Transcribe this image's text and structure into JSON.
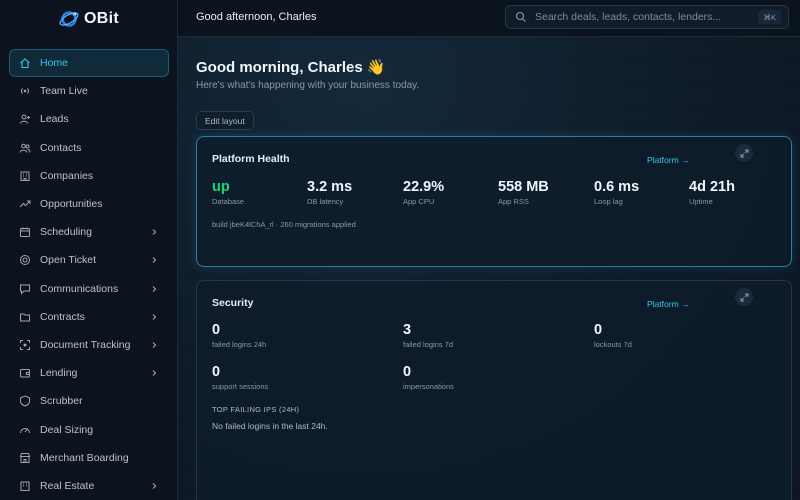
{
  "brand": {
    "name": "OBit"
  },
  "sidebar": {
    "items": [
      {
        "label": "Home",
        "icon": "home-icon"
      },
      {
        "label": "Team Live",
        "icon": "broadcast-icon"
      },
      {
        "label": "Leads",
        "icon": "user-plus-icon"
      },
      {
        "label": "Contacts",
        "icon": "users-icon"
      },
      {
        "label": "Companies",
        "icon": "building-icon"
      },
      {
        "label": "Opportunities",
        "icon": "trend-up-icon"
      },
      {
        "label": "Scheduling",
        "icon": "calendar-icon"
      },
      {
        "label": "Open Ticket",
        "icon": "lifebuoy-icon"
      },
      {
        "label": "Communications",
        "icon": "chat-icon"
      },
      {
        "label": "Contracts",
        "icon": "folder-icon"
      },
      {
        "label": "Document Tracking",
        "icon": "scan-icon"
      },
      {
        "label": "Lending",
        "icon": "wallet-icon"
      },
      {
        "label": "Scrubber",
        "icon": "shield-icon"
      },
      {
        "label": "Deal Sizing",
        "icon": "gauge-icon"
      },
      {
        "label": "Merchant Boarding",
        "icon": "store-icon"
      },
      {
        "label": "Real Estate",
        "icon": "building-icon"
      }
    ]
  },
  "header": {
    "greeting": "Good afternoon, Charles",
    "search_placeholder": "Search deals, leads, contacts, lenders...",
    "search_shortcut": "⌘K"
  },
  "main": {
    "welcome": "Good morning, Charles 👋",
    "subtitle": "Here's what's happening with your business today.",
    "edit_layout": "Edit layout"
  },
  "health": {
    "title": "Platform Health",
    "link": "Platform →",
    "metrics": [
      {
        "value": "up",
        "label": "Database"
      },
      {
        "value": "3.2 ms",
        "label": "DB latency"
      },
      {
        "value": "22.9%",
        "label": "App CPU"
      },
      {
        "value": "558 MB",
        "label": "App RSS"
      },
      {
        "value": "0.6 ms",
        "label": "Loop lag"
      },
      {
        "value": "4d 21h",
        "label": "Uptime"
      }
    ],
    "build": "build jbeK4lChA_rl · 260 migrations applied"
  },
  "security": {
    "title": "Security",
    "link": "Platform →",
    "metrics": [
      {
        "value": "0",
        "label": "failed logins 24h"
      },
      {
        "value": "3",
        "label": "failed logins 7d"
      },
      {
        "value": "0",
        "label": "lockouts 7d"
      },
      {
        "value": "0",
        "label": "support sessions"
      },
      {
        "value": "0",
        "label": "impersonations"
      }
    ],
    "top_heading": "TOP FAILING IPS (24H)",
    "empty_message": "No failed logins in the last 24h."
  },
  "colors": {
    "accent": "#37c5ee",
    "ok": "#22d27a",
    "background": "#0c1520"
  }
}
